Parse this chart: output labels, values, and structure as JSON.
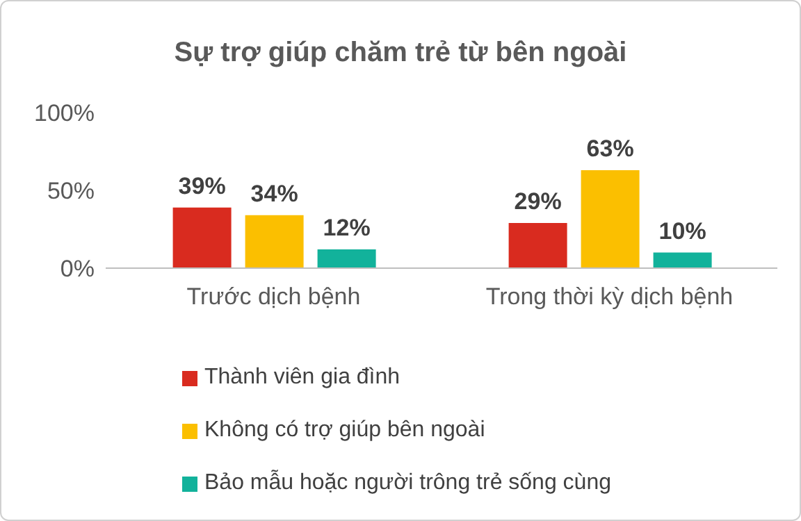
{
  "chart_data": {
    "type": "bar",
    "title": "Sự trợ giúp chăm trẻ từ bên ngoài",
    "categories": [
      "Trước dịch bệnh",
      "Trong thời kỳ dịch bệnh"
    ],
    "series": [
      {
        "name": "Thành viên gia đình",
        "color": "#d92b1f",
        "values": [
          39,
          29
        ],
        "value_labels": [
          "39%",
          "29%"
        ]
      },
      {
        "name": "Không có trợ giúp bên ngoài",
        "color": "#fbbf00",
        "values": [
          34,
          63
        ],
        "value_labels": [
          "34%",
          "63%"
        ]
      },
      {
        "name": "Bảo mẫu hoặc người trông trẻ sống cùng",
        "color": "#12b29b",
        "values": [
          12,
          10
        ],
        "value_labels": [
          "12%",
          "10%"
        ]
      }
    ],
    "ylim": [
      0,
      100
    ],
    "yticks": [
      {
        "value": 0,
        "label": "0%"
      },
      {
        "value": 50,
        "label": "50%"
      },
      {
        "value": 100,
        "label": "100%"
      }
    ],
    "grid": false,
    "legend": "bottom left"
  }
}
